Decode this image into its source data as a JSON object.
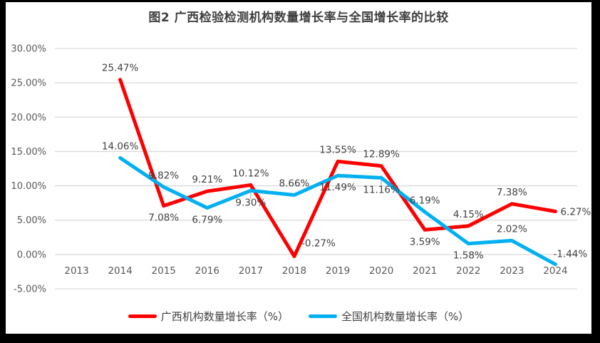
{
  "chart_data": {
    "type": "line",
    "title": "图2 广西检验检测机构数量增长率与全国增长率的比较",
    "categories": [
      "2013",
      "2014",
      "2015",
      "2016",
      "2017",
      "2018",
      "2019",
      "2020",
      "2021",
      "2022",
      "2023",
      "2024"
    ],
    "ylim": [
      -5,
      30
    ],
    "ytick_values": [
      30,
      25,
      20,
      15,
      10,
      5,
      0,
      -5
    ],
    "ytick_labels": [
      "30.00%",
      "25.00%",
      "20.00%",
      "15.00%",
      "10.00%",
      "5.00%",
      "0.00%",
      "-5.00%"
    ],
    "grid": true,
    "legend_position": "bottom",
    "series": [
      {
        "id": "guangxi-series",
        "name": "广西机构数量增长率（%）",
        "color": "#FE0000",
        "start_category_index": 1,
        "values": [
          25.47,
          7.08,
          9.21,
          10.12,
          -0.27,
          13.55,
          12.89,
          3.59,
          4.15,
          7.38,
          6.27
        ],
        "labels": [
          "25.47%",
          "7.08%",
          "9.21%",
          "10.12%",
          "-0.27%",
          "13.55%",
          "12.89%",
          "3.59%",
          "4.15%",
          "7.38%",
          "6.27%"
        ],
        "label_placement": [
          "above",
          "below",
          "above",
          "above",
          "up-right",
          "above",
          "above",
          "below",
          "above",
          "above",
          "right"
        ]
      },
      {
        "id": "national-series",
        "name": "全国机构数量增长率（%）",
        "color": "#00B0F0",
        "start_category_index": 1,
        "values": [
          14.06,
          9.82,
          6.79,
          9.3,
          8.66,
          11.49,
          11.16,
          6.19,
          1.58,
          2.02,
          -1.44
        ],
        "labels": [
          "14.06%",
          "9.82%",
          "6.79%",
          "9.30%",
          "8.66%",
          "11.49%",
          "11.16%",
          "6.19%",
          "1.58%",
          "2.02%",
          "-1.44%"
        ],
        "label_placement": [
          "above",
          "above",
          "below",
          "below-leader",
          "above",
          "below",
          "below-leader",
          "above",
          "below",
          "above",
          "right-up"
        ]
      }
    ]
  },
  "colors": {
    "gridline": "#D9D9D9",
    "axis_text": "#595959",
    "data_label_text": "#404040",
    "leader_line": "#BFBFBF",
    "frame": "#000000",
    "background": "#FFFFFF"
  }
}
